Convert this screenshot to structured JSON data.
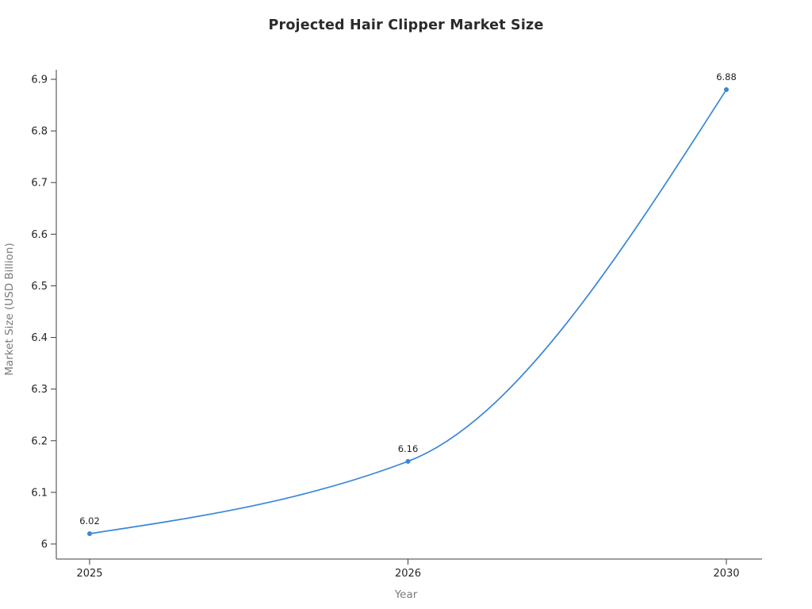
{
  "chart_data": {
    "type": "line",
    "title": "Projected Hair Clipper Market Size",
    "xlabel": "Year",
    "ylabel": "Market Size (USD Billion)",
    "categories": [
      "2025",
      "2026",
      "2030"
    ],
    "values": [
      6.02,
      6.16,
      6.88
    ],
    "point_labels": [
      "6.02",
      "6.16",
      "6.88"
    ],
    "y_ticks": [
      "6",
      "6.1",
      "6.2",
      "6.3",
      "6.4",
      "6.5",
      "6.6",
      "6.7",
      "6.8",
      "6.9"
    ],
    "ylim": [
      6.0,
      6.9
    ],
    "line_color": "#3a86d6",
    "marker_color": "#3a86d6",
    "axis_color": "#3c3c3c",
    "grid": false,
    "legend": "none",
    "curve": "smooth"
  }
}
